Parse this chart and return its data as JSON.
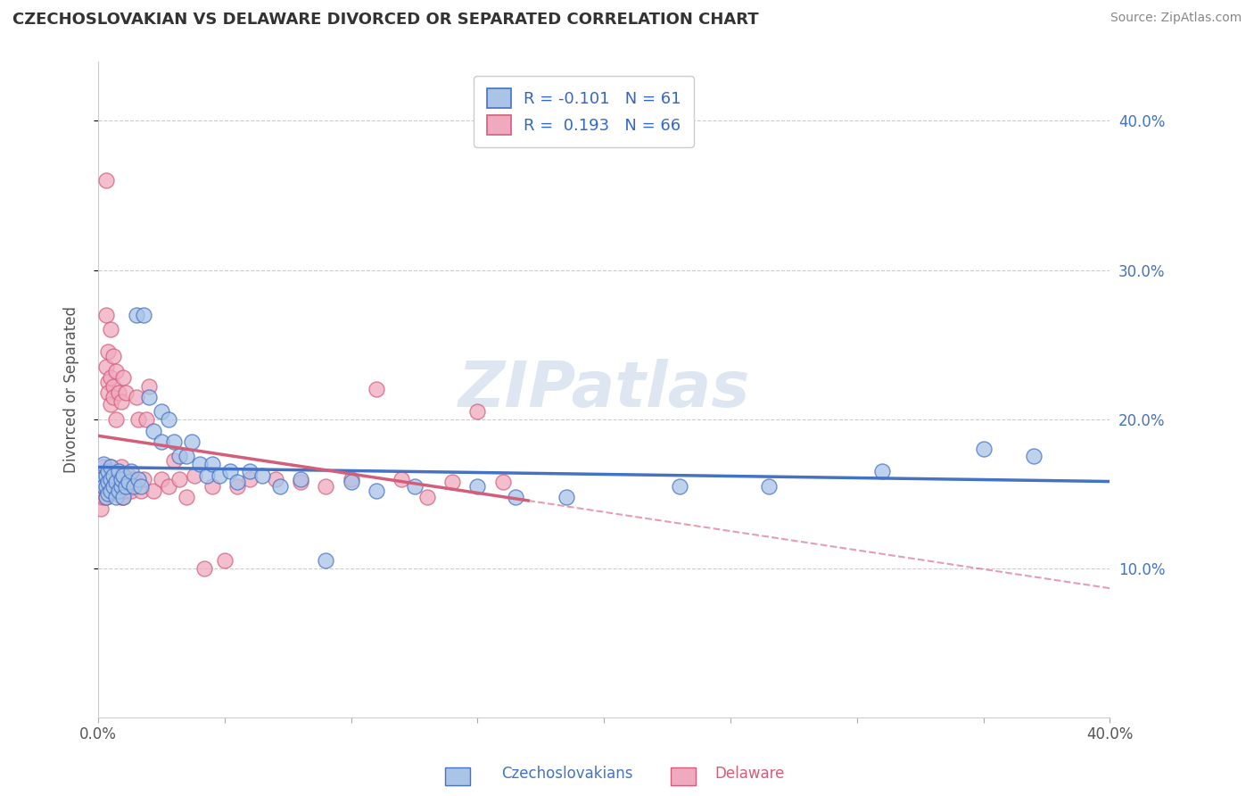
{
  "title": "CZECHOSLOVAKIAN VS DELAWARE DIVORCED OR SEPARATED CORRELATION CHART",
  "source": "Source: ZipAtlas.com",
  "ylabel": "Divorced or Separated",
  "xlabel_blue": "Czechoslovakians",
  "xlabel_pink": "Delaware",
  "xlim": [
    0.0,
    0.4
  ],
  "ylim": [
    0.0,
    0.44
  ],
  "yticks_right": [
    0.1,
    0.2,
    0.3,
    0.4
  ],
  "ytick_right_labels": [
    "10.0%",
    "20.0%",
    "30.0%",
    "40.0%"
  ],
  "legend_blue_R": "-0.101",
  "legend_blue_N": "61",
  "legend_pink_R": "0.193",
  "legend_pink_N": "66",
  "blue_color": "#aac4e8",
  "pink_color": "#f0aac0",
  "blue_line_color": "#4472c4",
  "pink_line_color": "#d45e7a",
  "watermark_color": "#c8d8e8",
  "blue_scatter": [
    [
      0.001,
      0.16
    ],
    [
      0.002,
      0.155
    ],
    [
      0.002,
      0.17
    ],
    [
      0.003,
      0.148
    ],
    [
      0.003,
      0.155
    ],
    [
      0.003,
      0.162
    ],
    [
      0.004,
      0.15
    ],
    [
      0.004,
      0.158
    ],
    [
      0.004,
      0.165
    ],
    [
      0.005,
      0.152
    ],
    [
      0.005,
      0.16
    ],
    [
      0.005,
      0.168
    ],
    [
      0.006,
      0.155
    ],
    [
      0.006,
      0.162
    ],
    [
      0.007,
      0.148
    ],
    [
      0.007,
      0.158
    ],
    [
      0.008,
      0.152
    ],
    [
      0.008,
      0.165
    ],
    [
      0.009,
      0.155
    ],
    [
      0.009,
      0.16
    ],
    [
      0.01,
      0.148
    ],
    [
      0.01,
      0.162
    ],
    [
      0.011,
      0.155
    ],
    [
      0.012,
      0.158
    ],
    [
      0.013,
      0.165
    ],
    [
      0.014,
      0.155
    ],
    [
      0.015,
      0.27
    ],
    [
      0.016,
      0.16
    ],
    [
      0.017,
      0.155
    ],
    [
      0.018,
      0.27
    ],
    [
      0.02,
      0.215
    ],
    [
      0.022,
      0.192
    ],
    [
      0.025,
      0.185
    ],
    [
      0.025,
      0.205
    ],
    [
      0.028,
      0.2
    ],
    [
      0.03,
      0.185
    ],
    [
      0.032,
      0.175
    ],
    [
      0.035,
      0.175
    ],
    [
      0.037,
      0.185
    ],
    [
      0.04,
      0.17
    ],
    [
      0.043,
      0.162
    ],
    [
      0.045,
      0.17
    ],
    [
      0.048,
      0.162
    ],
    [
      0.052,
      0.165
    ],
    [
      0.055,
      0.158
    ],
    [
      0.06,
      0.165
    ],
    [
      0.065,
      0.162
    ],
    [
      0.072,
      0.155
    ],
    [
      0.08,
      0.16
    ],
    [
      0.09,
      0.105
    ],
    [
      0.1,
      0.158
    ],
    [
      0.11,
      0.152
    ],
    [
      0.125,
      0.155
    ],
    [
      0.15,
      0.155
    ],
    [
      0.165,
      0.148
    ],
    [
      0.185,
      0.148
    ],
    [
      0.23,
      0.155
    ],
    [
      0.265,
      0.155
    ],
    [
      0.31,
      0.165
    ],
    [
      0.35,
      0.18
    ],
    [
      0.37,
      0.175
    ]
  ],
  "pink_scatter": [
    [
      0.001,
      0.148
    ],
    [
      0.001,
      0.14
    ],
    [
      0.002,
      0.168
    ],
    [
      0.002,
      0.155
    ],
    [
      0.002,
      0.148
    ],
    [
      0.003,
      0.36
    ],
    [
      0.003,
      0.27
    ],
    [
      0.003,
      0.148
    ],
    [
      0.003,
      0.235
    ],
    [
      0.004,
      0.245
    ],
    [
      0.004,
      0.225
    ],
    [
      0.004,
      0.218
    ],
    [
      0.005,
      0.26
    ],
    [
      0.005,
      0.228
    ],
    [
      0.005,
      0.21
    ],
    [
      0.005,
      0.168
    ],
    [
      0.005,
      0.155
    ],
    [
      0.006,
      0.242
    ],
    [
      0.006,
      0.222
    ],
    [
      0.006,
      0.215
    ],
    [
      0.006,
      0.16
    ],
    [
      0.007,
      0.232
    ],
    [
      0.007,
      0.2
    ],
    [
      0.007,
      0.16
    ],
    [
      0.007,
      0.155
    ],
    [
      0.008,
      0.218
    ],
    [
      0.008,
      0.152
    ],
    [
      0.009,
      0.212
    ],
    [
      0.009,
      0.168
    ],
    [
      0.009,
      0.148
    ],
    [
      0.01,
      0.228
    ],
    [
      0.01,
      0.162
    ],
    [
      0.01,
      0.148
    ],
    [
      0.011,
      0.218
    ],
    [
      0.011,
      0.152
    ],
    [
      0.012,
      0.162
    ],
    [
      0.013,
      0.152
    ],
    [
      0.014,
      0.16
    ],
    [
      0.015,
      0.215
    ],
    [
      0.016,
      0.2
    ],
    [
      0.017,
      0.152
    ],
    [
      0.018,
      0.16
    ],
    [
      0.019,
      0.2
    ],
    [
      0.02,
      0.222
    ],
    [
      0.022,
      0.152
    ],
    [
      0.025,
      0.16
    ],
    [
      0.028,
      0.155
    ],
    [
      0.03,
      0.172
    ],
    [
      0.032,
      0.16
    ],
    [
      0.035,
      0.148
    ],
    [
      0.038,
      0.162
    ],
    [
      0.042,
      0.1
    ],
    [
      0.045,
      0.155
    ],
    [
      0.05,
      0.105
    ],
    [
      0.055,
      0.155
    ],
    [
      0.06,
      0.16
    ],
    [
      0.07,
      0.16
    ],
    [
      0.08,
      0.158
    ],
    [
      0.09,
      0.155
    ],
    [
      0.1,
      0.16
    ],
    [
      0.11,
      0.22
    ],
    [
      0.12,
      0.16
    ],
    [
      0.13,
      0.148
    ],
    [
      0.14,
      0.158
    ],
    [
      0.15,
      0.205
    ],
    [
      0.16,
      0.158
    ]
  ]
}
